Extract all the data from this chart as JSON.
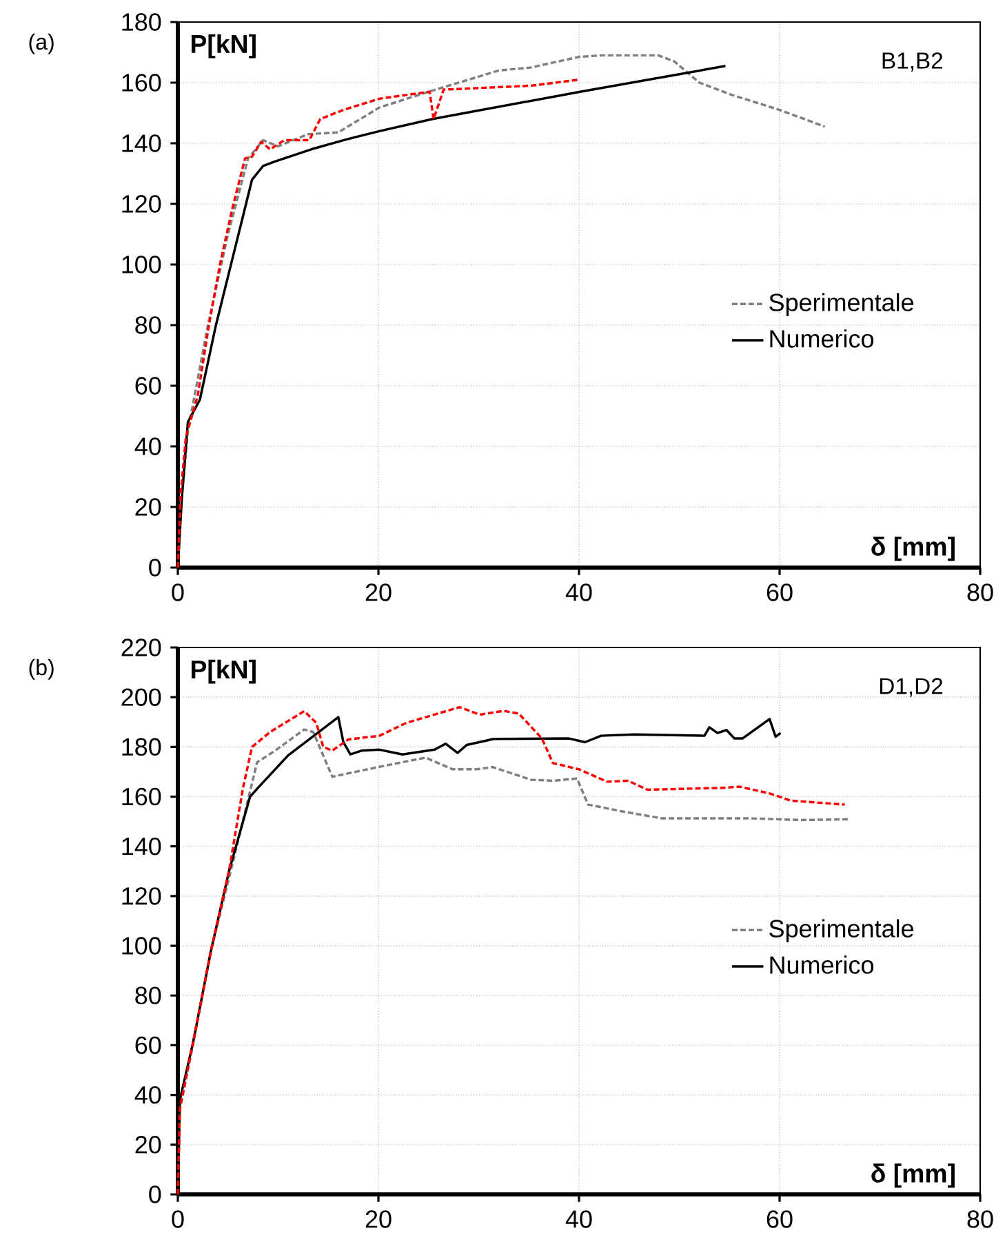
{
  "chart_data": [
    {
      "type": "line",
      "xlabel": "δ [mm]",
      "ylabel": "P[kN]",
      "annotations": [
        "(a)",
        "B1,B2"
      ],
      "xlim": [
        0,
        80
      ],
      "ylim": [
        0,
        180
      ],
      "xticks": [
        0,
        20,
        40,
        60,
        80
      ],
      "yticks": [
        0,
        20,
        40,
        60,
        80,
        100,
        120,
        140,
        160,
        180
      ],
      "grid": true,
      "legend": "right",
      "series": [
        {
          "name": "Sperimentale",
          "color": "#808080",
          "line_style": "dashed",
          "x": [
            0,
            0.3,
            1,
            3,
            5,
            7,
            8.5,
            10,
            13,
            16,
            20.1,
            25,
            32,
            35.2,
            40,
            42.2,
            47.9,
            49.5,
            52,
            55.2,
            60,
            64.5
          ],
          "values": [
            0,
            20,
            45,
            80,
            110,
            135,
            141,
            139,
            143,
            143.6,
            151.8,
            157,
            164,
            165,
            168.5,
            169,
            169,
            167,
            160,
            156,
            151,
            145.5
          ]
        },
        {
          "name": "Numerico",
          "color": "#000000",
          "line_style": "solid",
          "x": [
            0,
            0.4,
            1,
            2.2,
            3.8,
            5.6,
            7.4,
            8.5,
            9.7,
            13.3,
            16.5,
            20.1,
            25.4,
            40.1,
            54.6
          ],
          "values": [
            0,
            23,
            48,
            55.4,
            80,
            104,
            128,
            132.5,
            134,
            138,
            141,
            144,
            148,
            157,
            165.5
          ]
        },
        {
          "color": "#ff0000",
          "line_style": "dashed",
          "x": [
            0,
            0.3,
            0.8,
            2,
            3.1,
            4.2,
            5.4,
            6.7,
            7.4,
            8.3,
            9.2,
            10.6,
            13.1,
            14.2,
            16.5,
            20.1,
            25.1,
            25.5,
            26.5,
            35.2,
            40.1
          ],
          "values": [
            0,
            25,
            43,
            57,
            80,
            100,
            118,
            135,
            135.6,
            140.5,
            138,
            141,
            141,
            148,
            151,
            154.7,
            157,
            148,
            157.7,
            159,
            161
          ]
        }
      ]
    },
    {
      "type": "line",
      "xlabel": "δ [mm]",
      "ylabel": "P[kN]",
      "annotations": [
        "(b)",
        "D1,D2"
      ],
      "xlim": [
        0,
        80
      ],
      "ylim": [
        0,
        220
      ],
      "xticks": [
        0,
        20,
        40,
        60,
        80
      ],
      "yticks": [
        0,
        20,
        40,
        60,
        80,
        100,
        120,
        140,
        160,
        180,
        200,
        220
      ],
      "grid": true,
      "legend": "right",
      "series": [
        {
          "name": "Sperimentale",
          "color": "#808080",
          "line_style": "dashed",
          "x": [
            0,
            0.2,
            1.5,
            3.3,
            5.6,
            7.9,
            9.7,
            12.6,
            13.5,
            15.4,
            20.1,
            24.7,
            27.4,
            29.8,
            31.4,
            35.2,
            37.4,
            39.8,
            40.9,
            44.4,
            48.2,
            56.8,
            62.2,
            66.9
          ],
          "values": [
            0,
            34,
            60,
            98,
            135.5,
            173.8,
            178.5,
            187,
            186,
            168,
            172,
            175.7,
            171,
            171,
            171.9,
            166.8,
            166.4,
            167.3,
            156.8,
            154,
            151.3,
            151.3,
            150.6,
            150.9
          ]
        },
        {
          "name": "Numerico",
          "color": "#000000",
          "line_style": "solid",
          "x": [
            0,
            0.2,
            1.5,
            3.3,
            5.1,
            7.2,
            8,
            11,
            16,
            16.5,
            17.2,
            18.3,
            20.1,
            22.4,
            25.6,
            26.7,
            27.9,
            28.8,
            31.5,
            39,
            40.6,
            42.2,
            45.5,
            52.5,
            53,
            53.8,
            54.7,
            55.5,
            56.3,
            59,
            59.6,
            60.1
          ],
          "values": [
            0,
            38,
            60.7,
            98,
            130,
            160,
            163.6,
            176.6,
            192,
            182,
            177,
            178.5,
            178.9,
            177,
            178.9,
            181.3,
            177.6,
            180.8,
            183.2,
            183.4,
            181.9,
            184.5,
            185,
            184.5,
            187.9,
            185.6,
            186.8,
            183.4,
            183.4,
            191.2,
            184.1,
            185.6
          ]
        },
        {
          "color": "#ff0000",
          "line_style": "dashed",
          "x": [
            0,
            0.2,
            1.5,
            3.3,
            5.1,
            6.5,
            7.4,
            9.2,
            12.6,
            13.8,
            14.5,
            15.4,
            17,
            20.1,
            22.8,
            28.1,
            30.1,
            32.5,
            34,
            36.3,
            37.4,
            40,
            42.8,
            44.9,
            46.8,
            54.1,
            56,
            59,
            61.1,
            66.5
          ],
          "values": [
            0,
            34.6,
            60.7,
            98,
            130,
            163.6,
            180,
            186,
            194.4,
            189.7,
            180,
            178.5,
            183,
            184.5,
            189.7,
            196,
            193,
            194.5,
            193.4,
            183.4,
            173.5,
            171,
            166,
            166.4,
            162.8,
            163.5,
            164,
            161.3,
            158.4,
            156.8
          ]
        }
      ]
    }
  ]
}
